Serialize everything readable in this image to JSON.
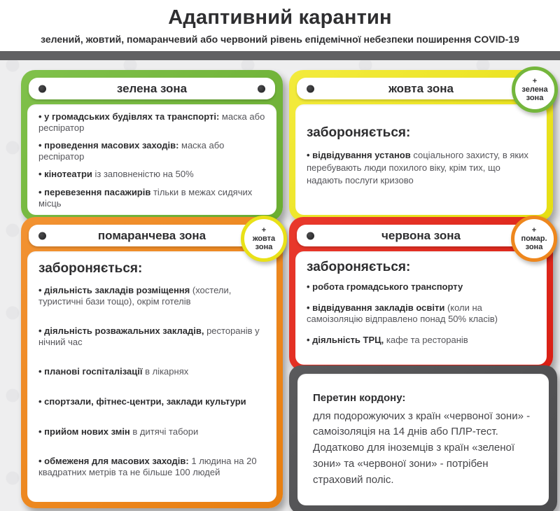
{
  "page": {
    "title": "Адаптивний карантин",
    "subtitle": "зелений, жовтий, помаранчевий або червоний рівень епідемічної небезпеки поширення COVID-19"
  },
  "colors": {
    "green": "#74b63c",
    "yellow": "#ece51c",
    "orange": "#ee871d",
    "red": "#e1281c",
    "dark_gray": "#525254",
    "divider_bar": "#616163",
    "background": "#eeeeef",
    "text_dark": "#2e2e30"
  },
  "cards": {
    "green": {
      "zone_label": "зелена зона",
      "items": [
        {
          "bold": "у громадських будівлях та транспорті:",
          "rest": " маска або респіратор"
        },
        {
          "bold": "проведення масових заходів:",
          "rest": " маска або респіратор"
        },
        {
          "bold": "кінотеатри",
          "rest": " із заповненістю на 50%"
        },
        {
          "bold": "перевезення пасажирів",
          "rest": " тільки в межах сидячих місць"
        }
      ]
    },
    "yellow": {
      "zone_label": "жовта зона",
      "badge": "+\nзелена\nзона",
      "forbidden": "забороняється:",
      "items": [
        {
          "bold": "відвідування установ",
          "rest": " соціального захисту, в яких перебувають люди похилого віку, крім тих, що надають послуги кризово"
        }
      ]
    },
    "orange": {
      "zone_label": "помаранчева зона",
      "badge": "+\nжовта\nзона",
      "forbidden": "забороняється:",
      "items": [
        {
          "bold": "діяльність закладів розміщення",
          "rest": " (хостели, туристичні бази тощо), окрім готелів"
        },
        {
          "bold": "діяльність розважальних закладів,",
          "rest": " ресторанів у нічний час"
        },
        {
          "bold": "планові госпіталізації",
          "rest": " в лікарнях"
        },
        {
          "bold": "спортзали, фітнес-центри, заклади культури",
          "rest": ""
        },
        {
          "bold": "прийом нових змін",
          "rest": " в дитячі табори"
        },
        {
          "bold": "обмеженя для масових заходів:",
          "rest": " 1 людина на 20 квадратних метрів та не більше 100 людей"
        }
      ]
    },
    "red": {
      "zone_label": "червона зона",
      "badge": "+\nпомар.\nзона",
      "forbidden": "забороняється:",
      "items": [
        {
          "bold": "робота громадського транспорту",
          "rest": ""
        },
        {
          "bold": "відвідування закладів освіти",
          "rest": " (коли на самоізоляцію відправлено понад 50% класів)"
        },
        {
          "bold": "діяльність ТРЦ,",
          "rest": " кафе та ресторанів"
        }
      ]
    },
    "border_crossing": {
      "heading": "Перетин кордону:",
      "body": "для подорожуючих з країн «червоної зони» - самоізоляція на 14 днів або ПЛР-тест. Додатково для іноземців з країн «зеленої зони» та «червоної зони» - потрібен страховий поліс."
    }
  }
}
